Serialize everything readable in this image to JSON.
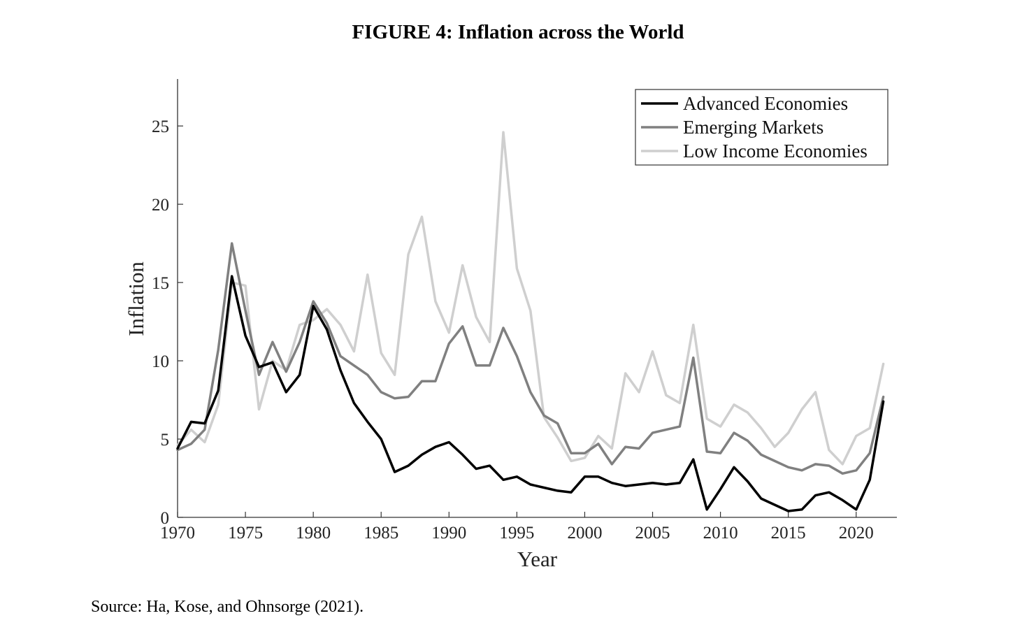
{
  "figure_title": "FIGURE 4: Inflation across the World",
  "source_note": "Source: Ha, Kose, and Ohnsorge (2021).",
  "chart_data": {
    "type": "line",
    "title": "",
    "xlabel": "Year",
    "ylabel": "Inflation",
    "xlim": [
      1970,
      2023
    ],
    "ylim": [
      0,
      28
    ],
    "x_ticks": [
      1970,
      1975,
      1980,
      1985,
      1990,
      1995,
      2000,
      2005,
      2010,
      2015,
      2020
    ],
    "y_ticks": [
      0,
      5,
      10,
      15,
      20,
      25
    ],
    "grid": false,
    "legend_position": "top-right",
    "x": [
      1970,
      1971,
      1972,
      1973,
      1974,
      1975,
      1976,
      1977,
      1978,
      1979,
      1980,
      1981,
      1982,
      1983,
      1984,
      1985,
      1986,
      1987,
      1988,
      1989,
      1990,
      1991,
      1992,
      1993,
      1994,
      1995,
      1996,
      1997,
      1998,
      1999,
      2000,
      2001,
      2002,
      2003,
      2004,
      2005,
      2006,
      2007,
      2008,
      2009,
      2010,
      2011,
      2012,
      2013,
      2014,
      2015,
      2016,
      2017,
      2018,
      2019,
      2020,
      2021,
      2022
    ],
    "series": [
      {
        "name": "Advanced Economies",
        "color": "#000000",
        "values": [
          4.4,
          6.1,
          6.0,
          8.1,
          15.4,
          11.6,
          9.6,
          9.9,
          8.0,
          9.1,
          13.5,
          12.0,
          9.4,
          7.3,
          6.1,
          5.0,
          2.9,
          3.3,
          4.0,
          4.5,
          4.8,
          4.0,
          3.1,
          3.3,
          2.4,
          2.6,
          2.1,
          1.9,
          1.7,
          1.6,
          2.6,
          2.6,
          2.2,
          2.0,
          2.1,
          2.2,
          2.1,
          2.2,
          3.7,
          0.5,
          1.8,
          3.2,
          2.3,
          1.2,
          0.8,
          0.4,
          0.5,
          1.4,
          1.6,
          1.1,
          0.5,
          2.4,
          7.4
        ]
      },
      {
        "name": "Emerging Markets",
        "color": "#808080",
        "values": [
          4.3,
          4.7,
          5.6,
          10.7,
          17.5,
          13.2,
          9.1,
          11.2,
          9.3,
          11.2,
          13.8,
          12.4,
          10.3,
          9.7,
          9.1,
          8.0,
          7.6,
          7.7,
          8.7,
          8.7,
          11.1,
          12.2,
          9.7,
          9.7,
          12.1,
          10.3,
          8.0,
          6.5,
          6.0,
          4.1,
          4.1,
          4.7,
          3.4,
          4.5,
          4.4,
          5.4,
          5.6,
          5.8,
          10.2,
          4.2,
          4.1,
          5.4,
          4.9,
          4.0,
          3.6,
          3.2,
          3.0,
          3.4,
          3.3,
          2.8,
          3.0,
          4.1,
          7.7
        ]
      },
      {
        "name": "Low Income Economies",
        "color": "#cfcfcf",
        "values": [
          4.6,
          5.6,
          4.8,
          7.2,
          15.0,
          14.8,
          6.9,
          10.0,
          9.4,
          12.3,
          12.6,
          13.3,
          12.3,
          10.6,
          15.5,
          10.5,
          9.1,
          16.8,
          19.2,
          13.8,
          11.8,
          16.1,
          12.8,
          11.2,
          24.6,
          15.9,
          13.2,
          6.4,
          5.1,
          3.6,
          3.8,
          5.2,
          4.4,
          9.2,
          8.0,
          10.6,
          7.8,
          7.3,
          12.3,
          6.3,
          5.8,
          7.2,
          6.7,
          5.7,
          4.5,
          5.4,
          6.9,
          8.0,
          4.3,
          3.4,
          5.2,
          5.7,
          9.8
        ]
      }
    ]
  }
}
